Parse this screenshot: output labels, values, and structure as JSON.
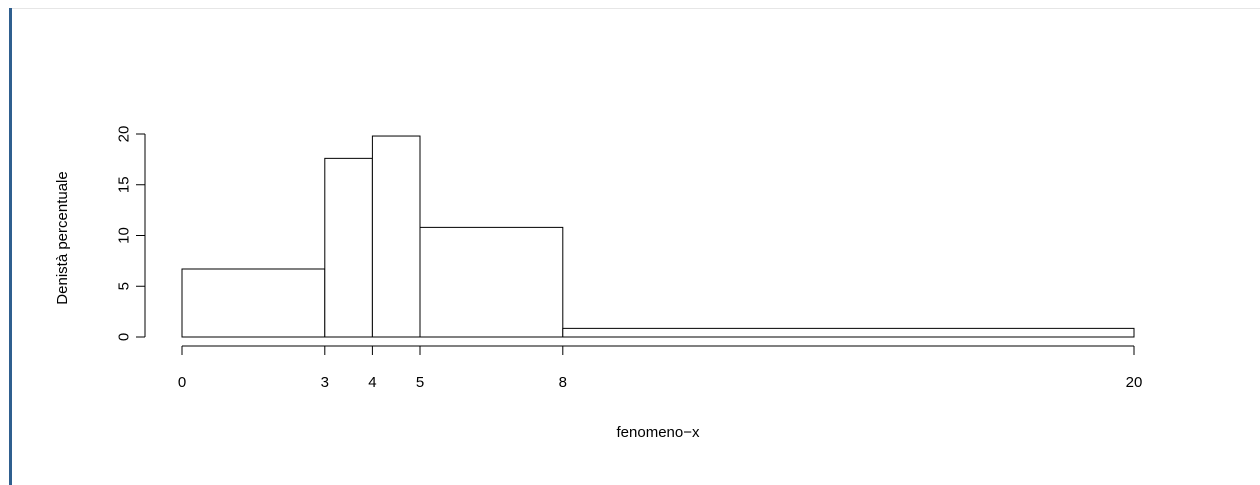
{
  "chart_data": {
    "type": "bar",
    "subtype": "histogram",
    "title": "",
    "xlabel": "fenomeno−x",
    "ylabel": "Denistà percentuale",
    "breaks": [
      0,
      3,
      4,
      5,
      8,
      20
    ],
    "x_tick_labels": [
      "0",
      "3",
      "4",
      "5",
      "8",
      "20"
    ],
    "bins": [
      {
        "from": 0,
        "to": 3,
        "density": 6.7
      },
      {
        "from": 3,
        "to": 4,
        "density": 17.6
      },
      {
        "from": 4,
        "to": 5,
        "density": 19.8
      },
      {
        "from": 5,
        "to": 8,
        "density": 10.8
      },
      {
        "from": 8,
        "to": 20,
        "density": 0.85
      }
    ],
    "y_ticks": [
      0,
      5,
      10,
      15,
      20
    ],
    "y_tick_labels": [
      "0",
      "5",
      "10",
      "15",
      "20"
    ],
    "xlim": [
      0,
      20
    ],
    "ylim": [
      0,
      20
    ],
    "grid": false,
    "legend": "none",
    "colors": {
      "bar_fill": "#ffffff",
      "bar_stroke": "#000000"
    }
  }
}
